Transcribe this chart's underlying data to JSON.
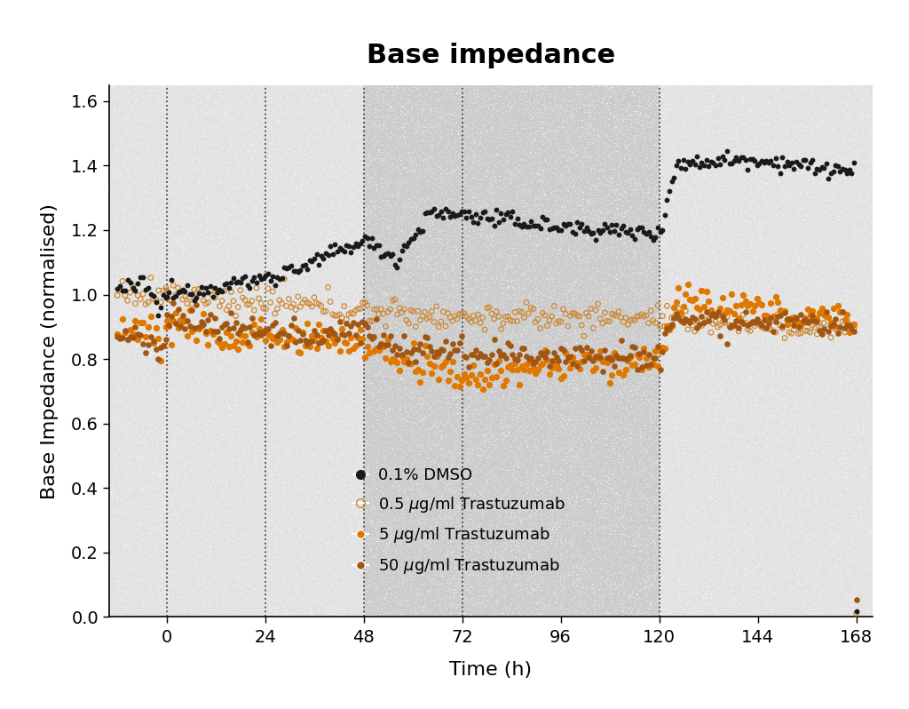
{
  "title": "Base impedance",
  "xlabel": "Time (h)",
  "ylabel": "Base Impedance (normalised)",
  "xlim": [
    -14,
    172
  ],
  "ylim": [
    0.0,
    1.65
  ],
  "xticks": [
    0,
    24,
    48,
    72,
    96,
    120,
    144,
    168
  ],
  "yticks": [
    0.0,
    0.2,
    0.4,
    0.6,
    0.8,
    1.0,
    1.2,
    1.4,
    1.6
  ],
  "bg_outer": "#ffffff",
  "bg_light": "#e4e4e4",
  "bg_dark": "#d0d0d0",
  "dotted_bg": "#e8e8e8",
  "vline_positions": [
    0,
    24,
    48,
    72,
    120
  ],
  "color_dmso": "#1a1a1a",
  "color_05": "#cc8844",
  "color_5": "#e07000",
  "color_50": "#996633",
  "title_fontsize": 22,
  "axis_label_fontsize": 16,
  "tick_fontsize": 14,
  "legend_fontsize": 13
}
